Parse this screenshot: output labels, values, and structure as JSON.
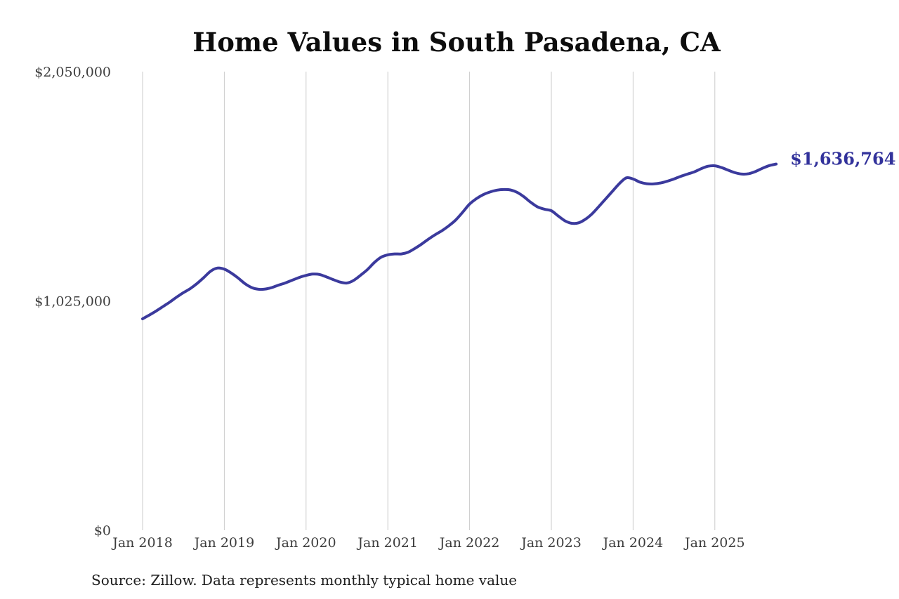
{
  "chart_data": {
    "type": "line",
    "title": "Home Values in South Pasadena, CA",
    "xlabel": "",
    "ylabel": "",
    "ylim": [
      0,
      2050000
    ],
    "grid": "vertical-only",
    "legend": "none",
    "y_ticks": [
      {
        "label": "$2,050,000",
        "value": 2050000
      },
      {
        "label": "$1,025,000",
        "value": 1025000
      },
      {
        "label": "$0",
        "value": 0
      }
    ],
    "x_ticks": [
      "Jan 2018",
      "Jan 2019",
      "Jan 2020",
      "Jan 2021",
      "Jan 2022",
      "Jan 2023",
      "Jan 2024",
      "Jan 2025"
    ],
    "series": [
      {
        "name": "Monthly typical home value",
        "start_month": "2018-01",
        "end_month": "2025-10",
        "frequency": "monthly",
        "values": [
          945000,
          962000,
          980000,
          1000000,
          1020000,
          1042000,
          1062000,
          1080000,
          1103000,
          1130000,
          1158000,
          1172000,
          1167000,
          1150000,
          1128000,
          1103000,
          1085000,
          1077000,
          1078000,
          1085000,
          1096000,
          1106000,
          1118000,
          1130000,
          1139000,
          1145000,
          1143000,
          1132000,
          1120000,
          1109000,
          1105000,
          1117000,
          1140000,
          1165000,
          1196000,
          1220000,
          1231000,
          1235000,
          1235000,
          1243000,
          1260000,
          1280000,
          1302000,
          1322000,
          1340000,
          1362000,
          1388000,
          1422000,
          1458000,
          1482000,
          1500000,
          1512000,
          1520000,
          1523000,
          1521000,
          1510000,
          1490000,
          1465000,
          1445000,
          1435000,
          1428000,
          1405000,
          1383000,
          1372000,
          1374000,
          1390000,
          1415000,
          1448000,
          1482000,
          1516000,
          1550000,
          1575000,
          1570000,
          1556000,
          1549000,
          1548000,
          1552000,
          1560000,
          1570000,
          1582000,
          1592000,
          1602000,
          1616000,
          1627000,
          1629000,
          1621000,
          1609000,
          1598000,
          1592000,
          1594000,
          1604000,
          1618000,
          1630000,
          1636764
        ]
      }
    ],
    "last_value": 1636764,
    "last_value_label": "$1,636,764",
    "source": "Source: Zillow. Data represents monthly typical home value"
  },
  "style": {
    "line_color": "#3b3a9d",
    "end_label_color": "#32329b",
    "grid_color": "#cbcbcb",
    "tick_text_color": "#3d3d3d",
    "title_color": "#0d0d0d",
    "source_color": "#202020",
    "background": "#ffffff"
  }
}
